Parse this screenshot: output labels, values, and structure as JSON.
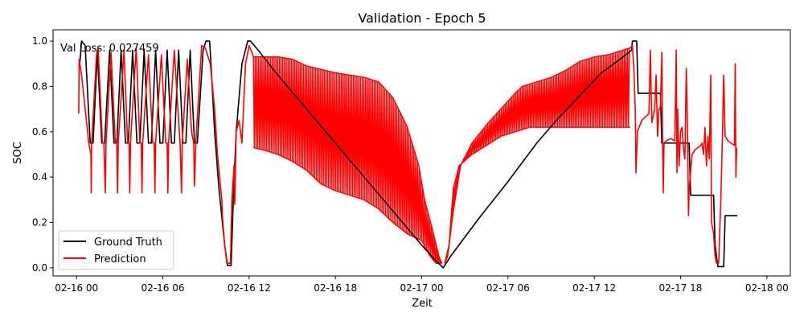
{
  "chart_data": {
    "type": "line",
    "title": "Validation - Epoch 5",
    "xlabel": "Zeit",
    "ylabel": "SOC",
    "annotation": "Val Loss: 0.027459",
    "x_unit": "hour (date-time axis, 2025-02-16 00:00 = 0)",
    "xlim": [
      "02-15 22:22",
      "02-18 01:38"
    ],
    "ylim": [
      -0.036,
      1.05
    ],
    "grid": false,
    "legend_position": "lower-left",
    "x_ticks": [
      {
        "label": "02-16 00",
        "x": 0
      },
      {
        "label": "02-16 06",
        "x": 6
      },
      {
        "label": "02-16 12",
        "x": 12
      },
      {
        "label": "02-16 18",
        "x": 18
      },
      {
        "label": "02-17 00",
        "x": 24
      },
      {
        "label": "02-17 06",
        "x": 30
      },
      {
        "label": "02-17 12",
        "x": 36
      },
      {
        "label": "02-17 18",
        "x": 42
      },
      {
        "label": "02-18 00",
        "x": 48
      }
    ],
    "y_ticks": [
      {
        "label": "0.0",
        "y": 0.0
      },
      {
        "label": "0.2",
        "y": 0.2
      },
      {
        "label": "0.4",
        "y": 0.4
      },
      {
        "label": "0.6",
        "y": 0.6
      },
      {
        "label": "0.8",
        "y": 0.8
      },
      {
        "label": "1.0",
        "y": 1.0
      }
    ],
    "series": [
      {
        "name": "Ground Truth",
        "color": "#000000",
        "points": [
          [
            0.2,
            0.88
          ],
          [
            0.35,
            1.0
          ],
          [
            0.6,
            0.98
          ],
          [
            0.95,
            0.55
          ],
          [
            1.15,
            0.55
          ],
          [
            1.45,
            0.95
          ],
          [
            1.75,
            0.55
          ],
          [
            1.95,
            0.55
          ],
          [
            2.3,
            0.96
          ],
          [
            2.6,
            0.55
          ],
          [
            2.8,
            0.55
          ],
          [
            3.1,
            0.96
          ],
          [
            3.4,
            0.55
          ],
          [
            3.6,
            0.55
          ],
          [
            3.9,
            0.96
          ],
          [
            4.2,
            0.55
          ],
          [
            4.4,
            0.55
          ],
          [
            4.7,
            0.96
          ],
          [
            5.0,
            0.55
          ],
          [
            5.2,
            0.55
          ],
          [
            5.5,
            0.96
          ],
          [
            5.8,
            0.55
          ],
          [
            6.0,
            0.55
          ],
          [
            6.3,
            0.96
          ],
          [
            6.6,
            0.55
          ],
          [
            6.8,
            0.55
          ],
          [
            7.1,
            0.96
          ],
          [
            7.4,
            0.55
          ],
          [
            7.6,
            0.55
          ],
          [
            7.9,
            0.96
          ],
          [
            8.2,
            0.55
          ],
          [
            8.4,
            0.55
          ],
          [
            8.8,
            0.96
          ],
          [
            9.0,
            1.0
          ],
          [
            9.25,
            1.0
          ],
          [
            9.35,
            0.9
          ],
          [
            9.6,
            0.6
          ],
          [
            9.9,
            0.35
          ],
          [
            10.3,
            0.1
          ],
          [
            10.5,
            0.01
          ],
          [
            10.75,
            0.01
          ],
          [
            10.9,
            0.3
          ],
          [
            11.1,
            0.6
          ],
          [
            11.5,
            0.9
          ],
          [
            11.9,
            1.0
          ],
          [
            12.1,
            1.0
          ],
          [
            12.5,
            0.97
          ],
          [
            13.0,
            0.93
          ],
          [
            14.0,
            0.85
          ],
          [
            16.0,
            0.7
          ],
          [
            18.0,
            0.55
          ],
          [
            20.0,
            0.4
          ],
          [
            22.0,
            0.25
          ],
          [
            24.0,
            0.1
          ],
          [
            25.0,
            0.03
          ],
          [
            25.5,
            0.0
          ],
          [
            26.0,
            0.05
          ],
          [
            28.0,
            0.22
          ],
          [
            30.0,
            0.38
          ],
          [
            32.0,
            0.55
          ],
          [
            33.5,
            0.66
          ],
          [
            35.0,
            0.76
          ],
          [
            36.5,
            0.86
          ],
          [
            38.0,
            0.93
          ],
          [
            38.6,
            0.96
          ],
          [
            38.65,
            1.0
          ],
          [
            38.95,
            1.0
          ],
          [
            39.05,
            0.77
          ],
          [
            40.6,
            0.77
          ],
          [
            40.7,
            0.55
          ],
          [
            42.6,
            0.55
          ],
          [
            42.7,
            0.32
          ],
          [
            44.3,
            0.32
          ],
          [
            44.4,
            0.1
          ],
          [
            44.6,
            0.005
          ],
          [
            45.0,
            0.005
          ],
          [
            45.1,
            0.23
          ],
          [
            45.9,
            0.23
          ],
          [
            45.95,
            0.228
          ]
        ]
      },
      {
        "name": "Prediction",
        "color": "#ff0000",
        "band": {
          "note": "dense oscillation envelope",
          "upper": [
            [
              12.3,
              0.93
            ],
            [
              14.0,
              0.93
            ],
            [
              15.0,
              0.92
            ],
            [
              16.0,
              0.89
            ],
            [
              18.0,
              0.86
            ],
            [
              20.0,
              0.84
            ],
            [
              21.0,
              0.82
            ],
            [
              22.0,
              0.75
            ],
            [
              23.0,
              0.62
            ],
            [
              23.8,
              0.45
            ],
            [
              24.2,
              0.3
            ],
            [
              24.7,
              0.18
            ],
            [
              25.2,
              0.05
            ],
            [
              25.4,
              0.02
            ]
          ],
          "lower": [
            [
              12.3,
              0.53
            ],
            [
              13.0,
              0.52
            ],
            [
              14.0,
              0.5
            ],
            [
              15.0,
              0.47
            ],
            [
              16.0,
              0.43
            ],
            [
              17.0,
              0.37
            ],
            [
              18.0,
              0.34
            ],
            [
              19.0,
              0.32
            ],
            [
              20.0,
              0.3
            ],
            [
              21.0,
              0.26
            ],
            [
              22.0,
              0.2
            ],
            [
              23.0,
              0.15
            ],
            [
              24.0,
              0.12
            ],
            [
              24.6,
              0.05
            ],
            [
              25.0,
              0.02
            ],
            [
              25.4,
              0.02
            ]
          ],
          "upper2": [
            [
              25.6,
              0.02
            ],
            [
              25.8,
              0.05
            ],
            [
              26.2,
              0.25
            ],
            [
              26.7,
              0.45
            ],
            [
              27.5,
              0.55
            ],
            [
              28.5,
              0.63
            ],
            [
              29.5,
              0.7
            ],
            [
              30.5,
              0.77
            ],
            [
              31.0,
              0.8
            ],
            [
              32.0,
              0.82
            ],
            [
              33.0,
              0.84
            ],
            [
              34.0,
              0.87
            ],
            [
              35.0,
              0.91
            ],
            [
              36.0,
              0.93
            ],
            [
              37.0,
              0.94
            ],
            [
              38.0,
              0.96
            ],
            [
              38.5,
              0.97
            ]
          ],
          "lower2": [
            [
              25.6,
              0.02
            ],
            [
              25.9,
              0.1
            ],
            [
              26.2,
              0.35
            ],
            [
              26.6,
              0.45
            ],
            [
              27.5,
              0.5
            ],
            [
              28.5,
              0.54
            ],
            [
              29.5,
              0.58
            ],
            [
              30.5,
              0.6
            ],
            [
              31.5,
              0.62
            ],
            [
              33.0,
              0.62
            ],
            [
              35.0,
              0.62
            ],
            [
              37.0,
              0.62
            ],
            [
              38.5,
              0.62
            ]
          ]
        },
        "points": [
          [
            0.15,
            0.68
          ],
          [
            0.18,
            0.92
          ],
          [
            0.35,
            0.85
          ],
          [
            0.6,
            0.7
          ],
          [
            0.85,
            0.55
          ],
          [
            1.0,
            0.5
          ],
          [
            1.02,
            0.33
          ],
          [
            1.05,
            0.55
          ],
          [
            1.4,
            0.95
          ],
          [
            1.5,
            0.97
          ],
          [
            1.8,
            0.55
          ],
          [
            1.9,
            0.55
          ],
          [
            2.0,
            0.33
          ],
          [
            2.05,
            0.55
          ],
          [
            2.4,
            0.95
          ],
          [
            2.7,
            0.55
          ],
          [
            2.8,
            0.55
          ],
          [
            2.85,
            0.33
          ],
          [
            2.9,
            0.55
          ],
          [
            3.3,
            0.96
          ],
          [
            3.55,
            0.55
          ],
          [
            3.65,
            0.55
          ],
          [
            3.7,
            0.33
          ],
          [
            3.75,
            0.55
          ],
          [
            4.15,
            0.97
          ],
          [
            4.4,
            0.55
          ],
          [
            4.5,
            0.55
          ],
          [
            4.55,
            0.33
          ],
          [
            4.6,
            0.55
          ],
          [
            5.0,
            0.94
          ],
          [
            5.3,
            0.55
          ],
          [
            5.4,
            0.55
          ],
          [
            5.45,
            0.33
          ],
          [
            5.5,
            0.55
          ],
          [
            5.9,
            0.94
          ],
          [
            6.2,
            0.55
          ],
          [
            6.3,
            0.55
          ],
          [
            6.35,
            0.33
          ],
          [
            6.4,
            0.55
          ],
          [
            6.8,
            0.96
          ],
          [
            7.0,
            0.75
          ],
          [
            7.2,
            0.55
          ],
          [
            7.3,
            0.33
          ],
          [
            7.35,
            0.55
          ],
          [
            7.7,
            0.92
          ],
          [
            8.0,
            0.6
          ],
          [
            8.15,
            0.55
          ],
          [
            8.2,
            0.36
          ],
          [
            8.3,
            0.56
          ],
          [
            8.7,
            0.98
          ],
          [
            8.95,
            0.97
          ],
          [
            9.3,
            0.9
          ],
          [
            9.6,
            0.7
          ],
          [
            9.8,
            0.5
          ],
          [
            10.1,
            0.3
          ],
          [
            10.15,
            0.22
          ],
          [
            10.3,
            0.1
          ],
          [
            10.45,
            0.02
          ],
          [
            10.7,
            0.02
          ],
          [
            10.8,
            0.3
          ],
          [
            10.95,
            0.45
          ],
          [
            11.0,
            0.28
          ],
          [
            11.1,
            0.6
          ],
          [
            11.3,
            0.65
          ],
          [
            11.5,
            0.55
          ],
          [
            11.75,
            0.9
          ],
          [
            12.0,
            0.98
          ],
          [
            12.2,
            0.95
          ],
          [
            12.3,
            0.93
          ],
          [
            38.5,
            0.97
          ],
          [
            38.65,
            0.98
          ],
          [
            38.75,
            0.88
          ],
          [
            38.85,
            0.7
          ],
          [
            38.9,
            0.42
          ],
          [
            39.0,
            0.6
          ],
          [
            39.3,
            0.65
          ],
          [
            39.8,
            0.68
          ],
          [
            39.9,
            0.96
          ],
          [
            40.0,
            0.64
          ],
          [
            40.2,
            0.7
          ],
          [
            40.3,
            0.85
          ],
          [
            40.4,
            0.58
          ],
          [
            40.5,
            0.7
          ],
          [
            40.6,
            0.71
          ],
          [
            40.7,
            0.95
          ],
          [
            40.75,
            0.55
          ],
          [
            40.8,
            0.33
          ],
          [
            40.85,
            0.55
          ],
          [
            41.0,
            0.56
          ],
          [
            41.3,
            0.57
          ],
          [
            41.6,
            0.56
          ],
          [
            41.7,
            0.96
          ],
          [
            41.75,
            0.42
          ],
          [
            41.8,
            0.7
          ],
          [
            41.9,
            0.45
          ],
          [
            42.0,
            0.6
          ],
          [
            42.1,
            0.62
          ],
          [
            42.2,
            0.53
          ],
          [
            42.3,
            0.48
          ],
          [
            42.4,
            0.88
          ],
          [
            42.5,
            0.55
          ],
          [
            42.55,
            0.23
          ],
          [
            42.6,
            0.35
          ],
          [
            42.8,
            0.5
          ],
          [
            43.0,
            0.52
          ],
          [
            43.2,
            0.53
          ],
          [
            43.4,
            0.54
          ],
          [
            43.5,
            0.55
          ],
          [
            43.6,
            0.5
          ],
          [
            43.7,
            0.62
          ],
          [
            43.8,
            0.45
          ],
          [
            43.9,
            0.58
          ],
          [
            44.0,
            0.48
          ],
          [
            44.1,
            0.85
          ],
          [
            44.15,
            0.2
          ],
          [
            44.3,
            0.15
          ],
          [
            44.4,
            0.05
          ],
          [
            44.5,
            0.02
          ],
          [
            44.65,
            0.02
          ],
          [
            44.8,
            0.3
          ],
          [
            44.9,
            0.55
          ],
          [
            45.0,
            0.85
          ],
          [
            45.1,
            0.58
          ],
          [
            45.3,
            0.56
          ],
          [
            45.5,
            0.55
          ],
          [
            45.75,
            0.54
          ],
          [
            45.8,
            0.9
          ],
          [
            45.85,
            0.4
          ],
          [
            45.9,
            0.53
          ]
        ]
      }
    ],
    "legend": [
      {
        "label": "Ground Truth",
        "color": "#000000"
      },
      {
        "label": "Prediction",
        "color": "#ff0000"
      }
    ]
  }
}
